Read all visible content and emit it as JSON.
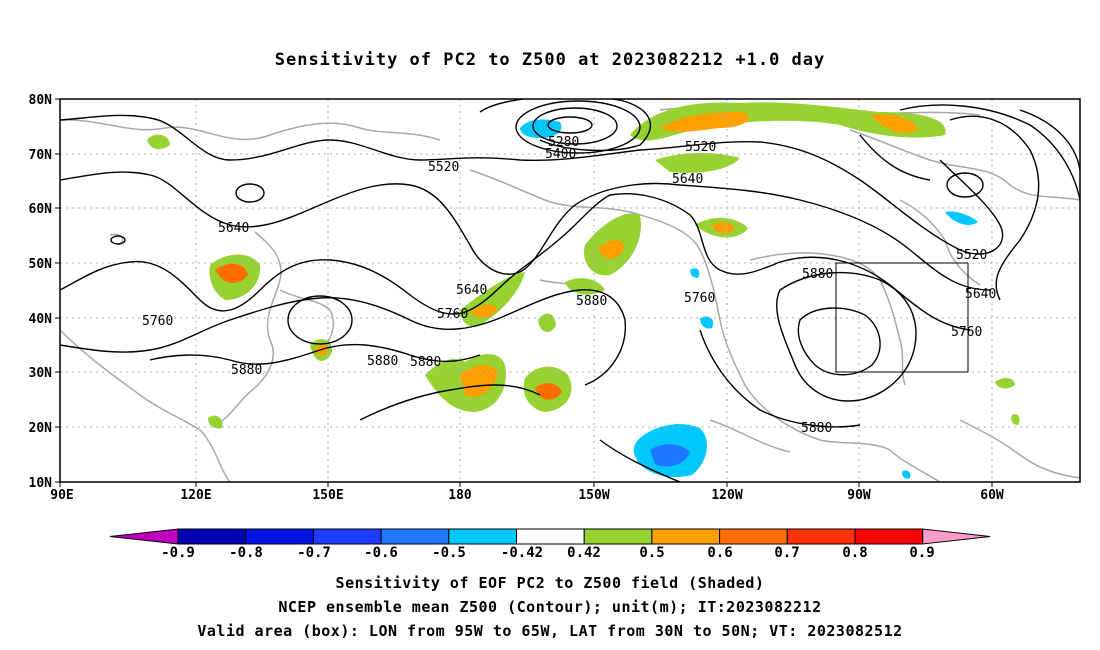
{
  "title": "Sensitivity of PC2 to Z500 at 2023082212 +1.0 day",
  "lat_labels": [
    "80N",
    "70N",
    "60N",
    "50N",
    "40N",
    "30N",
    "20N",
    "10N"
  ],
  "lon_labels": [
    "90E",
    "120E",
    "150E",
    "180",
    "150W",
    "120W",
    "90W",
    "60W"
  ],
  "contour_labels": {
    "c5280": "5280",
    "c5400": "5400",
    "c5520a": "5520",
    "c5520b": "5520",
    "c5520c": "5520",
    "c5640a": "5640",
    "c5640b": "5640",
    "c5640c": "5640",
    "c5640d": "5640",
    "c5760a": "5760",
    "c5760b": "5760",
    "c5760c": "5760",
    "c5760d": "5760",
    "c5880a": "5880",
    "c5880b": "5880",
    "c5880c": "5880",
    "c5880d": "5880",
    "c5880e": "5880",
    "c5880f": "5880"
  },
  "colorbar": {
    "labels": [
      "-0.9",
      "-0.8",
      "-0.7",
      "-0.6",
      "-0.5",
      "-0.42",
      "0.42",
      "0.5",
      "0.6",
      "0.7",
      "0.8",
      "0.9"
    ],
    "colors": [
      "#bf00bf",
      "#0000b4",
      "#0014e6",
      "#1e3cff",
      "#1e78ff",
      "#00c8ff",
      "#ffffff",
      "#96d232",
      "#ffa000",
      "#ff6e00",
      "#ff3200",
      "#ff0000",
      "#ff9bc8"
    ]
  },
  "footer": {
    "line1": "Sensitivity of EOF PC2 to Z500 field (Shaded)",
    "line2": "NCEP ensemble mean Z500 (Contour); unit(m); IT:2023082212",
    "line3": "Valid area (box): LON from 95W to 65W, LAT from 30N to 50N; VT: 2023082512"
  }
}
